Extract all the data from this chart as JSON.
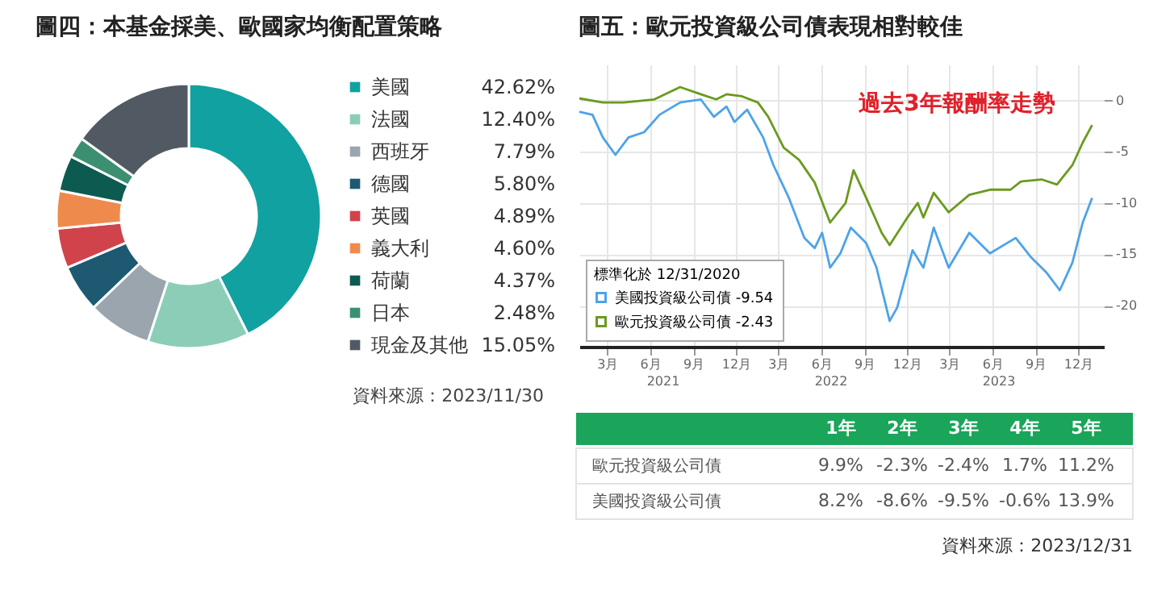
{
  "chart_data": [
    {
      "type": "donut",
      "title": "圖四：本基金採美、歐國家均衡配置策略",
      "categories": [
        "美國",
        "法國",
        "西班牙",
        "德國",
        "英國",
        "義大利",
        "荷蘭",
        "日本",
        "現金及其他"
      ],
      "values": [
        42.62,
        12.4,
        7.79,
        5.8,
        4.89,
        4.6,
        4.37,
        2.48,
        15.05
      ],
      "value_labels": [
        "42.62%",
        "12.40%",
        "7.79%",
        "5.80%",
        "4.89%",
        "4.60%",
        "4.37%",
        "2.48%",
        "15.05%"
      ],
      "colors": [
        "#11a1a0",
        "#8ccdb8",
        "#9aa5ad",
        "#1d5a72",
        "#d0434b",
        "#ef8a4d",
        "#0d5a50",
        "#3d8f72",
        "#515a63"
      ],
      "legend": "right",
      "annotations": [
        "資料來源：2023/11/30"
      ]
    },
    {
      "type": "line",
      "title": "圖五：歐元投資級公司債表現相對較佳",
      "legend_title": "標準化於 12/31/2020",
      "legend": "bottom left",
      "grid": true,
      "xlim": [
        "2021-01-01",
        "2024-01-25"
      ],
      "ylim": [
        -24,
        3.5
      ],
      "yticks": [
        0,
        -5,
        -10,
        -15,
        -20
      ],
      "xticks": [
        {
          "value": "2021-03-01",
          "label": "3月"
        },
        {
          "value": "2021-06-01",
          "label": "6月"
        },
        {
          "value": "2021-09-01",
          "label": "9月"
        },
        {
          "value": "2021-12-01",
          "label": "12月"
        },
        {
          "value": "2022-03-01",
          "label": "3月"
        },
        {
          "value": "2022-06-01",
          "label": "6月"
        },
        {
          "value": "2022-09-01",
          "label": "9月"
        },
        {
          "value": "2022-12-01",
          "label": "12月"
        },
        {
          "value": "2023-03-01",
          "label": "3月"
        },
        {
          "value": "2023-06-01",
          "label": "6月"
        },
        {
          "value": "2023-09-01",
          "label": "9月"
        },
        {
          "value": "2023-12-01",
          "label": "12月"
        }
      ],
      "annotations": [
        "過去3年報酬率走勢",
        "2021",
        "2022",
        "2023"
      ],
      "series": [
        {
          "name": "美國投資級公司債 -9.54",
          "color": "#4da3e8",
          "x": [
            "2021-01-01",
            "2021-01-29",
            "2021-02-20",
            "2021-03-19",
            "2021-04-16",
            "2021-05-19",
            "2021-06-21",
            "2021-08-04",
            "2021-09-17",
            "2021-10-15",
            "2021-11-11",
            "2021-11-28",
            "2021-12-25",
            "2022-01-28",
            "2022-02-19",
            "2022-03-24",
            "2022-04-26",
            "2022-05-18",
            "2022-06-03",
            "2022-06-20",
            "2022-07-12",
            "2022-08-03",
            "2022-09-05",
            "2022-09-27",
            "2022-10-25",
            "2022-11-10",
            "2022-12-13",
            "2023-01-05",
            "2023-01-27",
            "2023-02-28",
            "2023-04-13",
            "2023-05-27",
            "2023-07-21",
            "2023-08-23",
            "2023-09-25",
            "2023-10-23",
            "2023-11-19",
            "2023-12-11",
            "2023-12-31"
          ],
          "values": [
            -1.1,
            -1.4,
            -3.6,
            -5.3,
            -3.6,
            -3.1,
            -1.4,
            -0.2,
            0.1,
            -1.6,
            -0.6,
            -2.1,
            -0.9,
            -3.6,
            -6.3,
            -9.5,
            -13.4,
            -14.4,
            -12.9,
            -16.3,
            -14.9,
            -12.4,
            -13.9,
            -16.3,
            -21.5,
            -20.2,
            -14.6,
            -16.3,
            -12.4,
            -16.3,
            -12.9,
            -14.9,
            -13.4,
            -15.3,
            -16.8,
            -18.5,
            -15.8,
            -11.9,
            -9.5
          ]
        },
        {
          "name": "歐元投資級公司債 -2.43",
          "color": "#6b9a1f",
          "x": [
            "2021-01-01",
            "2021-02-20",
            "2021-04-05",
            "2021-06-10",
            "2021-08-04",
            "2021-09-17",
            "2021-10-20",
            "2021-11-11",
            "2021-12-14",
            "2022-01-17",
            "2022-02-08",
            "2022-03-13",
            "2022-04-15",
            "2022-05-18",
            "2022-06-20",
            "2022-07-23",
            "2022-08-09",
            "2022-09-05",
            "2022-10-08",
            "2022-10-25",
            "2022-12-02",
            "2022-12-24",
            "2023-01-05",
            "2023-01-27",
            "2023-02-28",
            "2023-04-13",
            "2023-05-27",
            "2023-07-10",
            "2023-08-01",
            "2023-09-14",
            "2023-10-17",
            "2023-11-19",
            "2023-12-11",
            "2023-12-31"
          ],
          "values": [
            0.2,
            -0.2,
            -0.2,
            0.1,
            1.3,
            0.6,
            0.1,
            0.6,
            0.4,
            -0.2,
            -1.6,
            -4.6,
            -5.8,
            -8,
            -11.9,
            -10,
            -6.8,
            -9.5,
            -12.9,
            -14.1,
            -11.4,
            -10,
            -11.4,
            -9,
            -10.9,
            -9.2,
            -8.7,
            -8.7,
            -7.9,
            -7.7,
            -8.2,
            -6.3,
            -4.1,
            -2.4
          ]
        }
      ]
    },
    {
      "type": "heatmap",
      "categories": [
        "1年",
        "2年",
        "3年",
        "4年",
        "5年"
      ],
      "y_categories": [
        "歐元投資級公司債",
        "美國投資級公司債"
      ],
      "annotations": [
        "資料來源：2023/12/31"
      ],
      "cells": [
        [
          9.9,
          -2.3,
          -2.4,
          1.7,
          11.2
        ],
        [
          8.2,
          -8.6,
          -9.5,
          -0.6,
          13.9
        ]
      ],
      "cell_labels": [
        [
          "9.9%",
          "-2.3%",
          "-2.4%",
          "1.7%",
          "11.2%"
        ],
        [
          "8.2%",
          "-8.6%",
          "-9.5%",
          "-0.6%",
          "13.9%"
        ]
      ]
    }
  ]
}
